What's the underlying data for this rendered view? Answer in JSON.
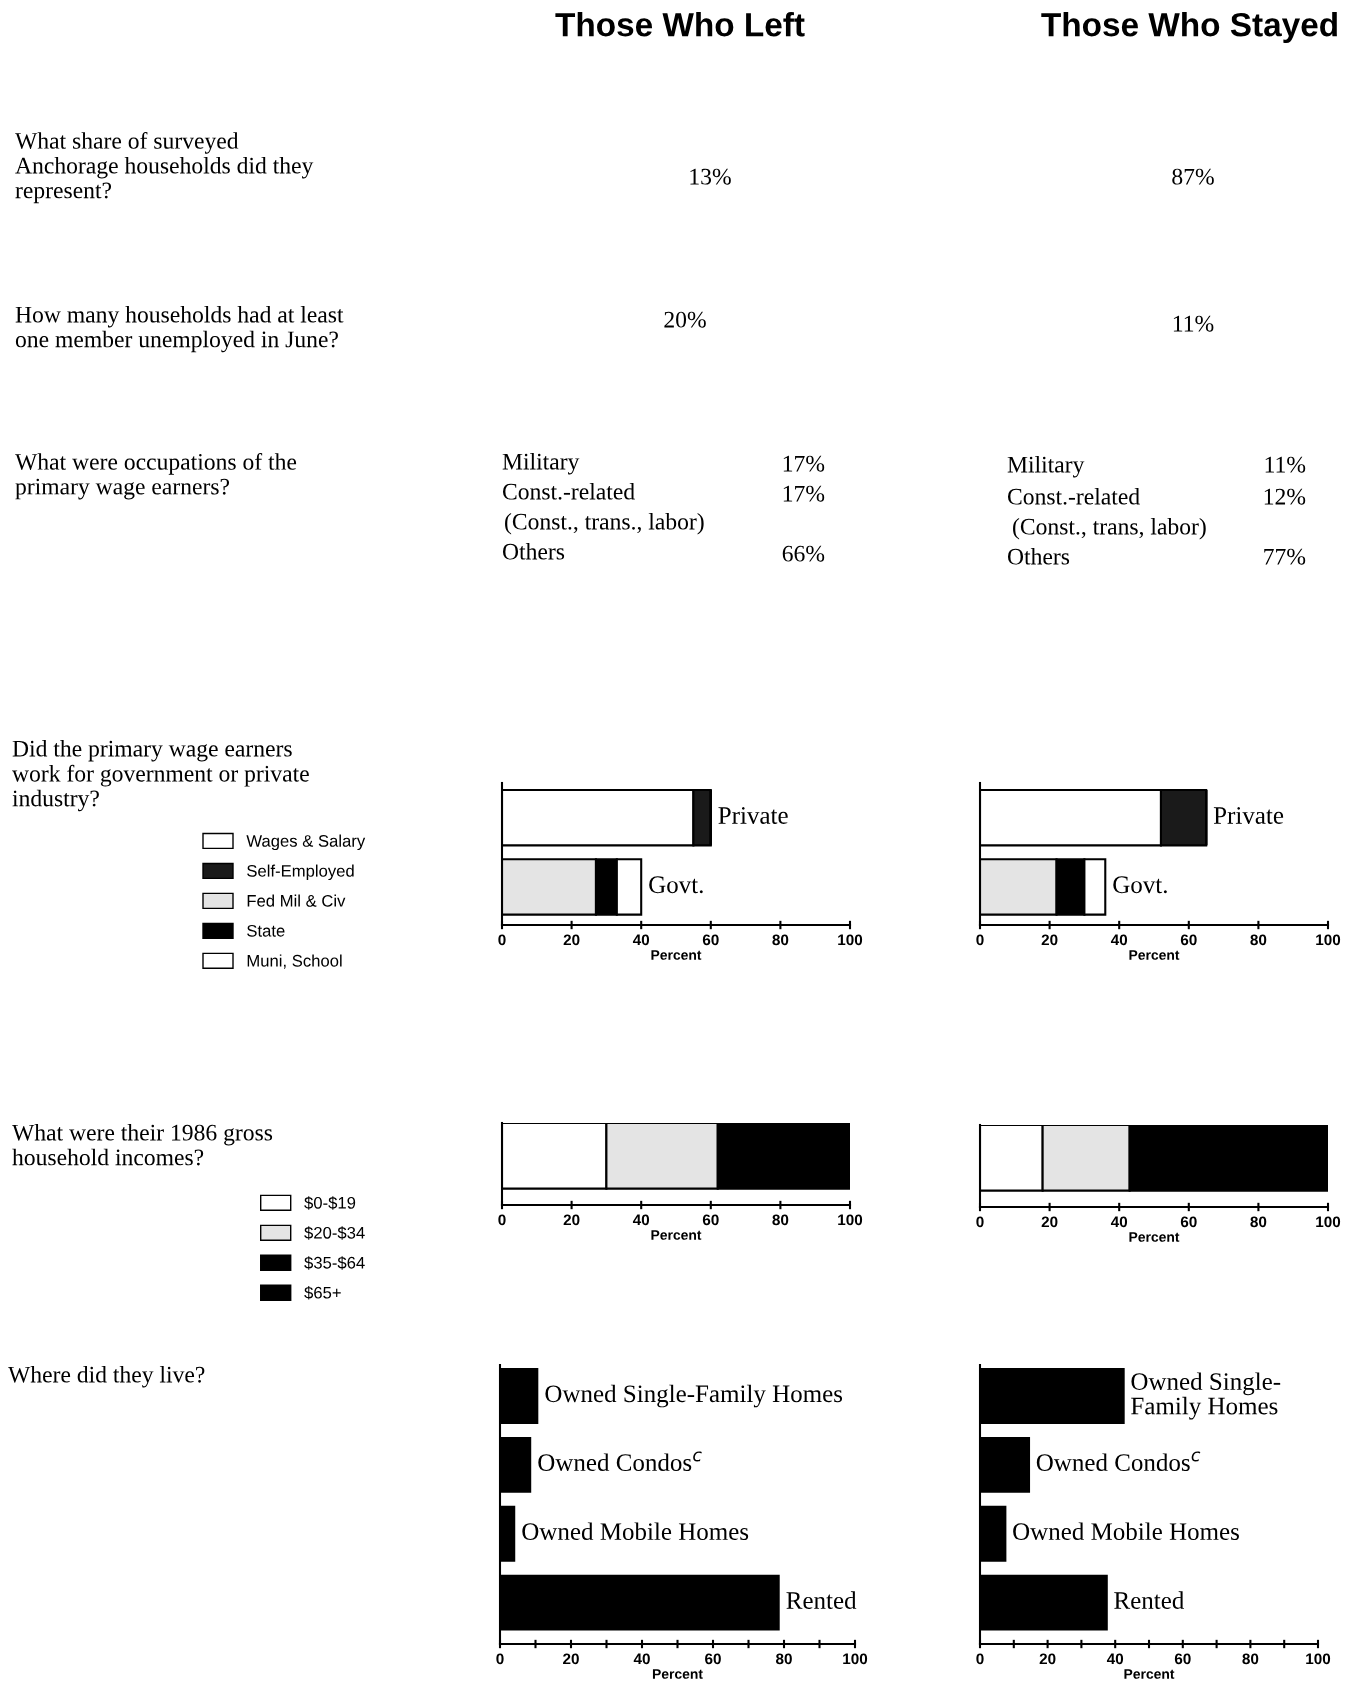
{
  "chart_data": [
    {
      "type": "other",
      "annotations": [
        "Those Who Left",
        "Those Who Stayed",
        "What share of surveyed\nAnchorage households did they\nrepresent?",
        "13%",
        "87%",
        "How many households had at least\none member unemployed in June?",
        "20%",
        "11%",
        "What were occupations of the\nprimary wage earners?",
        "Military",
        "17%",
        "Const.-related",
        "17%",
        "(Const., trans., labor)",
        "Others",
        "66%",
        "Military",
        "11%",
        "Const.-related",
        "12%",
        "(Const., trans, labor)",
        "Others",
        "77%",
        "Did the primary wage earners\nwork for government or private\nindustry?",
        "What were their 1986 gross\nhousehold incomes?",
        "Where did they live?"
      ]
    },
    {
      "type": "bar",
      "orientation": "horizontal",
      "stacked": true,
      "categories": [
        "Private",
        "Govt."
      ],
      "xlabel": "Percent",
      "xlim": [
        0,
        100
      ],
      "xticks": [
        0,
        20,
        40,
        60,
        80,
        100
      ],
      "tick_labels": "x",
      "legend": "left",
      "series": [
        {
          "name": "Wages & Salary",
          "color": "#ffffff",
          "values": [
            55,
            0
          ]
        },
        {
          "name": "Self-Employed",
          "color": "#1a1a1a",
          "values": [
            5,
            0
          ]
        },
        {
          "name": "Fed Mil & Civ",
          "color": "#e4e4e4",
          "values": [
            0,
            27
          ]
        },
        {
          "name": "State",
          "color": "#000000",
          "values": [
            0,
            6
          ]
        },
        {
          "name": "Muni, School",
          "color": "#ffffff",
          "values": [
            0,
            7
          ]
        }
      ]
    },
    {
      "type": "bar",
      "orientation": "horizontal",
      "stacked": true,
      "categories": [
        "Private",
        "Govt."
      ],
      "xlabel": "Percent",
      "xlim": [
        0,
        100
      ],
      "xticks": [
        0,
        20,
        40,
        60,
        80,
        100
      ],
      "tick_labels": "x",
      "series": [
        {
          "color": "#ffffff",
          "values": [
            52,
            0
          ]
        },
        {
          "color": "#1a1a1a",
          "values": [
            13,
            0
          ]
        },
        {
          "color": "#e4e4e4",
          "values": [
            0,
            22
          ]
        },
        {
          "color": "#000000",
          "values": [
            0,
            8
          ]
        },
        {
          "color": "#ffffff",
          "values": [
            0,
            6
          ]
        }
      ]
    },
    {
      "type": "bar",
      "orientation": "horizontal",
      "stacked": true,
      "categories": [
        null
      ],
      "xlabel": "Percent",
      "xlim": [
        0,
        100
      ],
      "xticks": [
        0,
        20,
        40,
        60,
        80,
        100
      ],
      "tick_labels": "x",
      "legend": "left",
      "series": [
        {
          "name": "$0-$19",
          "color": "#ffffff",
          "values": [
            30
          ]
        },
        {
          "name": "$20-$34",
          "color": "#e4e4e4",
          "values": [
            32
          ]
        },
        {
          "name": "$35-$64",
          "color": "#000000",
          "values": [
            38
          ]
        },
        {
          "name": "$65+",
          "color": "#000000",
          "values": [
            null
          ]
        }
      ]
    },
    {
      "type": "bar",
      "orientation": "horizontal",
      "stacked": true,
      "categories": [
        null
      ],
      "xlabel": "Percent",
      "xlim": [
        0,
        100
      ],
      "xticks": [
        0,
        20,
        40,
        60,
        80,
        100
      ],
      "tick_labels": "x",
      "series": [
        {
          "color": "#ffffff",
          "values": [
            18
          ]
        },
        {
          "color": "#e4e4e4",
          "values": [
            25
          ]
        },
        {
          "color": "#000000",
          "values": [
            57
          ]
        },
        {
          "values": [
            null
          ]
        }
      ]
    },
    {
      "type": "bar",
      "orientation": "horizontal",
      "categories": [
        "Owned Single-Family Homes",
        "Owned Condos$^{c}$",
        "Owned Mobile Homes",
        "Rented"
      ],
      "xlabel": "Percent",
      "xlim": [
        0,
        100
      ],
      "xticks": [
        0,
        {
          "value": 10,
          "label": null
        },
        20,
        {
          "value": 30,
          "label": null
        },
        40,
        {
          "value": 50,
          "label": null
        },
        60,
        {
          "value": 70,
          "label": null
        },
        80,
        {
          "value": 90,
          "label": null
        },
        100
      ],
      "tick_labels": "x",
      "series": [
        {
          "color": "#000000",
          "values": [
            10.5,
            8.5,
            4,
            78.5
          ]
        }
      ]
    },
    {
      "type": "bar",
      "orientation": "horizontal",
      "categories": [
        "Owned Single-\nFamily Homes",
        "Owned Condos$^{c}$",
        "Owned Mobile Homes",
        "Rented"
      ],
      "xlabel": "Percent",
      "xlim": [
        0,
        100
      ],
      "xticks": [
        0,
        {
          "value": 10,
          "label": null
        },
        20,
        {
          "value": 30,
          "label": null
        },
        40,
        {
          "value": 50,
          "label": null
        },
        60,
        {
          "value": 70,
          "label": null
        },
        80,
        {
          "value": 90,
          "label": null
        },
        100
      ],
      "tick_labels": "x",
      "series": [
        {
          "color": "#000000",
          "values": [
            42.5,
            14.5,
            7.5,
            37.5
          ]
        }
      ]
    }
  ]
}
